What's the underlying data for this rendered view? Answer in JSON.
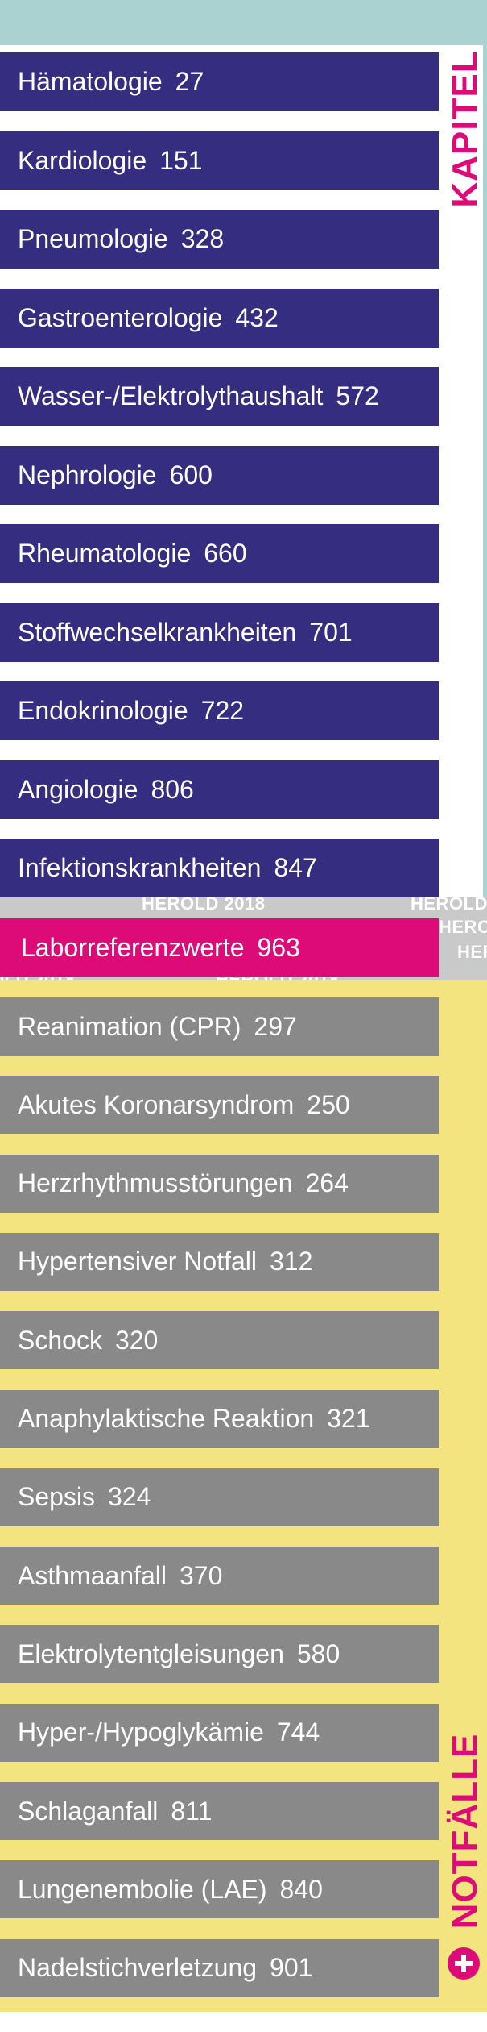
{
  "colors": {
    "kapitel": "#342d80",
    "labor": "#dd0b78",
    "notfall": "#898989",
    "accent": "#dd0b78",
    "top_band": "#a9d2d1",
    "notfall_background": "#f3e47f"
  },
  "kapitel_label": "KAPITEL",
  "notfaelle_label": "NOTFÄLLE",
  "watermark": "HEROLD 2018",
  "kapitel": [
    {
      "label": "Hämatologie",
      "page": "27"
    },
    {
      "label": "Kardiologie",
      "page": "151"
    },
    {
      "label": "Pneumologie",
      "page": "328"
    },
    {
      "label": "Gastroenterologie",
      "page": "432"
    },
    {
      "label": "Wasser-/Elektrolythaushalt",
      "page": "572"
    },
    {
      "label": "Nephrologie",
      "page": "600"
    },
    {
      "label": "Rheumatologie",
      "page": "660"
    },
    {
      "label": "Stoffwechselkrankheiten",
      "page": "701"
    },
    {
      "label": "Endokrinologie",
      "page": "722"
    },
    {
      "label": "Angiologie",
      "page": "806"
    },
    {
      "label": "Infektionskrankheiten",
      "page": "847"
    }
  ],
  "labor": {
    "label": "Laborreferenzwerte",
    "page": "963"
  },
  "notfaelle": [
    {
      "label": "Reanimation (CPR)",
      "page": "297"
    },
    {
      "label": "Akutes Koronarsyndrom",
      "page": "250"
    },
    {
      "label": "Herzrhythmusstörungen",
      "page": "264"
    },
    {
      "label": "Hypertensiver Notfall",
      "page": "312"
    },
    {
      "label": "Schock",
      "page": "320"
    },
    {
      "label": "Anaphylaktische Reaktion",
      "page": "321"
    },
    {
      "label": "Sepsis",
      "page": "324"
    },
    {
      "label": "Asthmaanfall",
      "page": "370"
    },
    {
      "label": "Elektrolytentgleisungen",
      "page": "580"
    },
    {
      "label": "Hyper-/Hypoglykämie",
      "page": "744"
    },
    {
      "label": "Schlaganfall",
      "page": "811"
    },
    {
      "label": "Lungenembolie (LAE)",
      "page": "840"
    },
    {
      "label": "Nadelstichverletzung",
      "page": "901"
    }
  ]
}
